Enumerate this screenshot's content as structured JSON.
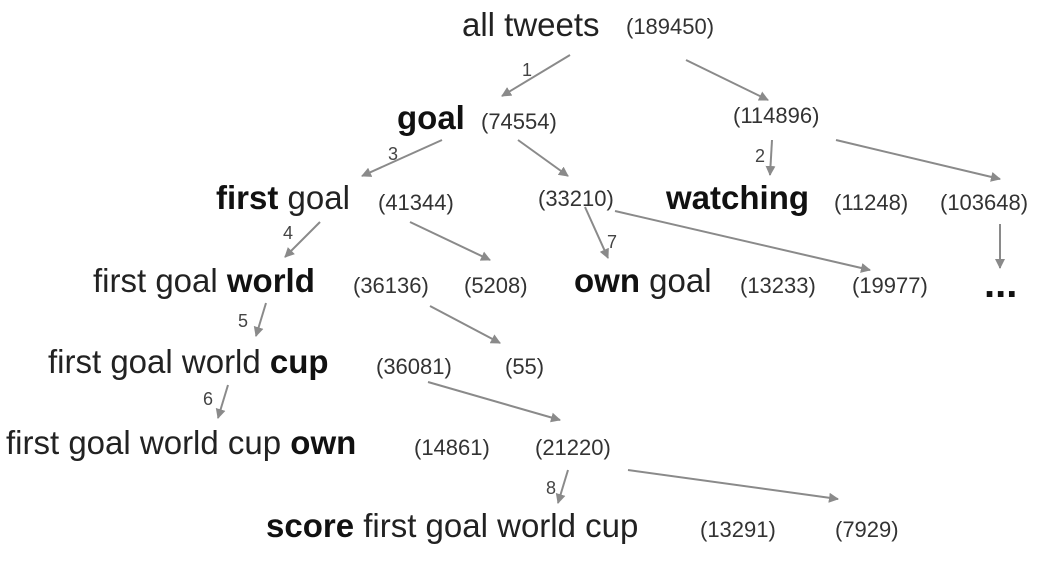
{
  "nodes": {
    "root": {
      "pre": "all tweets",
      "hl": "",
      "post": "",
      "count": "(189450)"
    },
    "goal": {
      "pre": "",
      "hl": "goal",
      "post": "",
      "count": "(74554)"
    },
    "not_goal": {
      "count": "(114896)"
    },
    "first_goal": {
      "pre": "",
      "hl": "first",
      "post": " goal",
      "count": "(41344)"
    },
    "goal_rest": {
      "count": "(33210)"
    },
    "watching": {
      "pre": "",
      "hl": "watching",
      "post": "",
      "count": "(11248)"
    },
    "not_watching": {
      "count": "(103648)"
    },
    "world": {
      "pre": "first goal ",
      "hl": "world",
      "post": "",
      "count": "(36136)"
    },
    "first_rest": {
      "count": "(5208)"
    },
    "own_goal": {
      "pre": "",
      "hl": "own",
      "post": " goal",
      "count": "(13233)"
    },
    "own_rest": {
      "count": "(19977)"
    },
    "more": {
      "text": "..."
    },
    "cup": {
      "pre": "first goal world ",
      "hl": "cup",
      "post": "",
      "count": "(36081)"
    },
    "world_rest": {
      "count": "(55)"
    },
    "own": {
      "pre": "first goal world cup ",
      "hl": "own",
      "post": "",
      "count": "(14861)"
    },
    "cup_rest": {
      "count": "(21220)"
    },
    "score": {
      "pre": "",
      "hl": "score",
      "post": " first goal world cup",
      "count": "(13291)"
    },
    "score_rest": {
      "count": "(7929)"
    }
  },
  "steps": [
    "1",
    "2",
    "3",
    "4",
    "5",
    "6",
    "7",
    "8"
  ]
}
